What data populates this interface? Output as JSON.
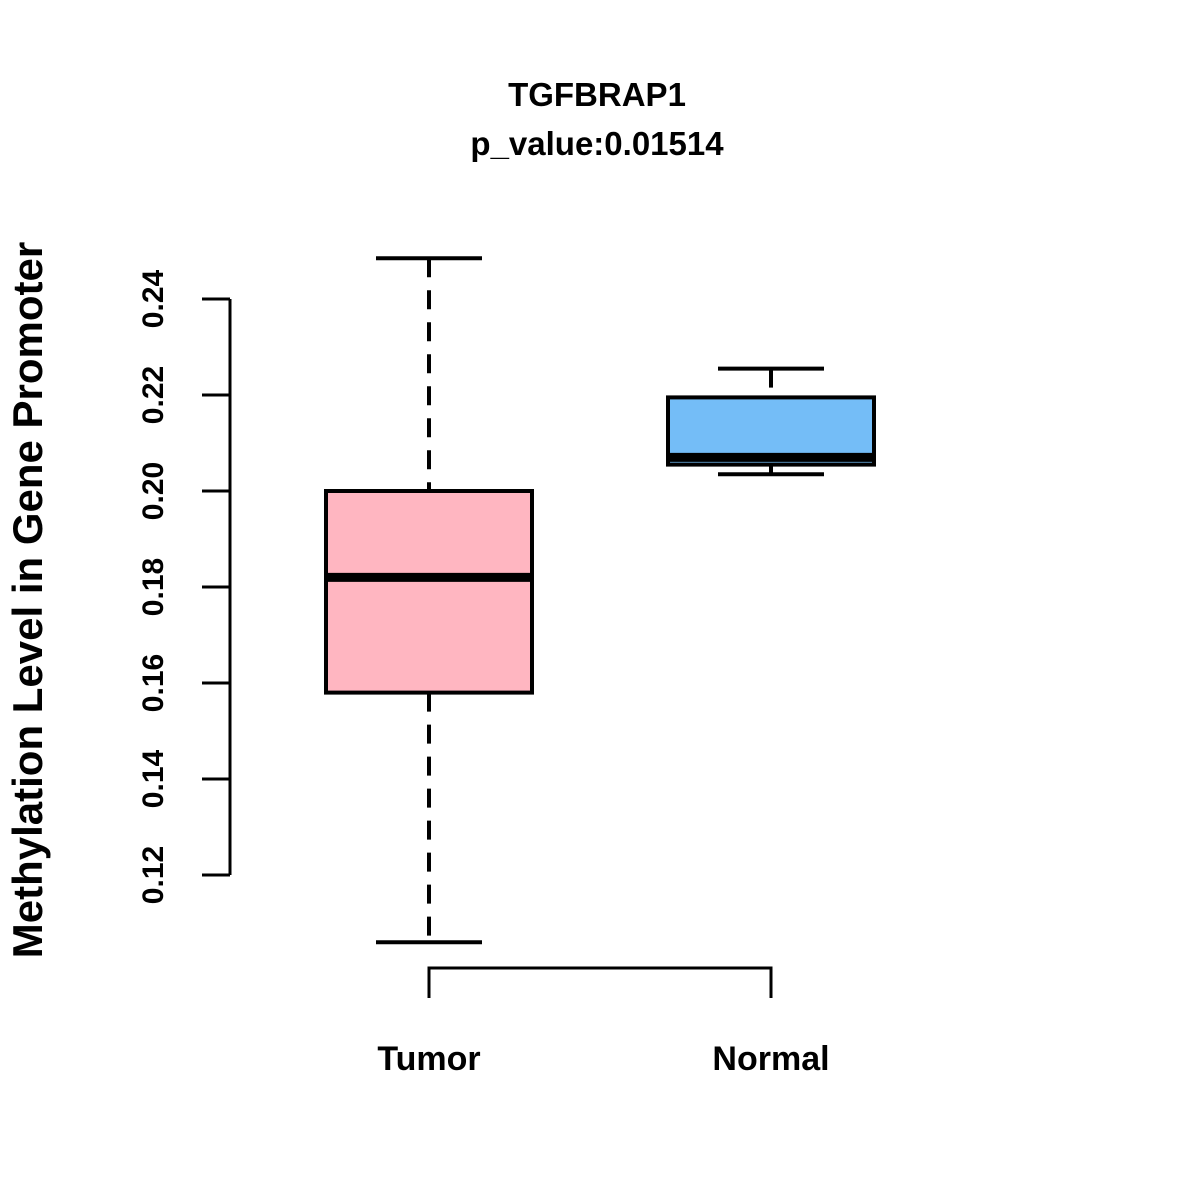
{
  "chart_data": {
    "type": "box",
    "title": "TGFBRAP1",
    "subtitle": "p_value:0.01514",
    "ylabel": "Methylation Level in Gene Promoter",
    "xlabel": "",
    "categories": [
      "Tumor",
      "Normal"
    ],
    "ytick_labels": [
      "0.12",
      "0.14",
      "0.16",
      "0.18",
      "0.20",
      "0.22",
      "0.24"
    ],
    "ytick_values": [
      0.12,
      0.14,
      0.16,
      0.18,
      0.2,
      0.22,
      0.24
    ],
    "ylim": [
      0.12,
      0.24
    ],
    "grid": false,
    "legend": "none",
    "line_color": "#000000",
    "background_color": "#ffffff",
    "series": [
      {
        "name": "Tumor",
        "lower_whisker": 0.106,
        "q1": 0.158,
        "median": 0.182,
        "q3": 0.2,
        "upper_whisker": 0.2485,
        "fill": "#FFB6C1"
      },
      {
        "name": "Normal",
        "lower_whisker": 0.2035,
        "q1": 0.2055,
        "median": 0.207,
        "q3": 0.2195,
        "upper_whisker": 0.2255,
        "fill": "#74BDF7"
      }
    ]
  }
}
